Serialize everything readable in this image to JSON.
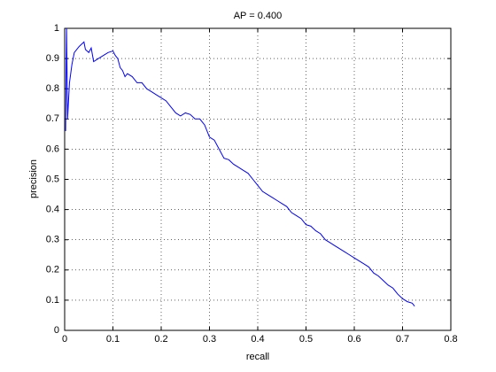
{
  "chart_data": {
    "type": "line",
    "title": "AP = 0.400",
    "x_label": "recall",
    "y_label": "precision",
    "color": "#0000ff",
    "grid": true,
    "xlim": [
      0,
      0.8
    ],
    "xticks": [
      0,
      0.1,
      0.2,
      0.3,
      0.4,
      0.5,
      0.6,
      0.7,
      0.8
    ],
    "ylim": [
      0,
      1
    ],
    "yticks": [
      0,
      0.1,
      0.2,
      0.3,
      0.4,
      0.5,
      0.6,
      0.7,
      0.8,
      0.9,
      1
    ],
    "x": [
      0.002,
      0.004,
      0.006,
      0.01,
      0.015,
      0.02,
      0.03,
      0.04,
      0.043,
      0.05,
      0.055,
      0.06,
      0.07,
      0.08,
      0.09,
      0.1,
      0.105,
      0.11,
      0.115,
      0.12,
      0.125,
      0.13,
      0.14,
      0.15,
      0.16,
      0.17,
      0.18,
      0.19,
      0.2,
      0.21,
      0.22,
      0.23,
      0.24,
      0.25,
      0.26,
      0.27,
      0.28,
      0.29,
      0.3,
      0.31,
      0.32,
      0.33,
      0.34,
      0.35,
      0.36,
      0.37,
      0.38,
      0.39,
      0.4,
      0.41,
      0.42,
      0.43,
      0.44,
      0.45,
      0.46,
      0.47,
      0.48,
      0.49,
      0.5,
      0.51,
      0.52,
      0.53,
      0.54,
      0.55,
      0.56,
      0.57,
      0.58,
      0.59,
      0.6,
      0.61,
      0.62,
      0.63,
      0.64,
      0.65,
      0.66,
      0.67,
      0.68,
      0.69,
      0.7,
      0.71,
      0.72,
      0.725
    ],
    "values": [
      0.66,
      1.0,
      0.7,
      0.82,
      0.88,
      0.92,
      0.94,
      0.955,
      0.93,
      0.92,
      0.935,
      0.89,
      0.9,
      0.91,
      0.92,
      0.925,
      0.91,
      0.9,
      0.87,
      0.86,
      0.84,
      0.85,
      0.84,
      0.82,
      0.82,
      0.8,
      0.79,
      0.78,
      0.77,
      0.76,
      0.74,
      0.72,
      0.71,
      0.72,
      0.715,
      0.7,
      0.7,
      0.68,
      0.64,
      0.63,
      0.6,
      0.57,
      0.565,
      0.55,
      0.54,
      0.53,
      0.52,
      0.5,
      0.48,
      0.46,
      0.45,
      0.44,
      0.43,
      0.42,
      0.41,
      0.39,
      0.38,
      0.37,
      0.35,
      0.345,
      0.33,
      0.32,
      0.3,
      0.29,
      0.28,
      0.27,
      0.26,
      0.25,
      0.24,
      0.23,
      0.22,
      0.21,
      0.19,
      0.18,
      0.165,
      0.15,
      0.14,
      0.12,
      0.105,
      0.095,
      0.09,
      0.08
    ]
  }
}
